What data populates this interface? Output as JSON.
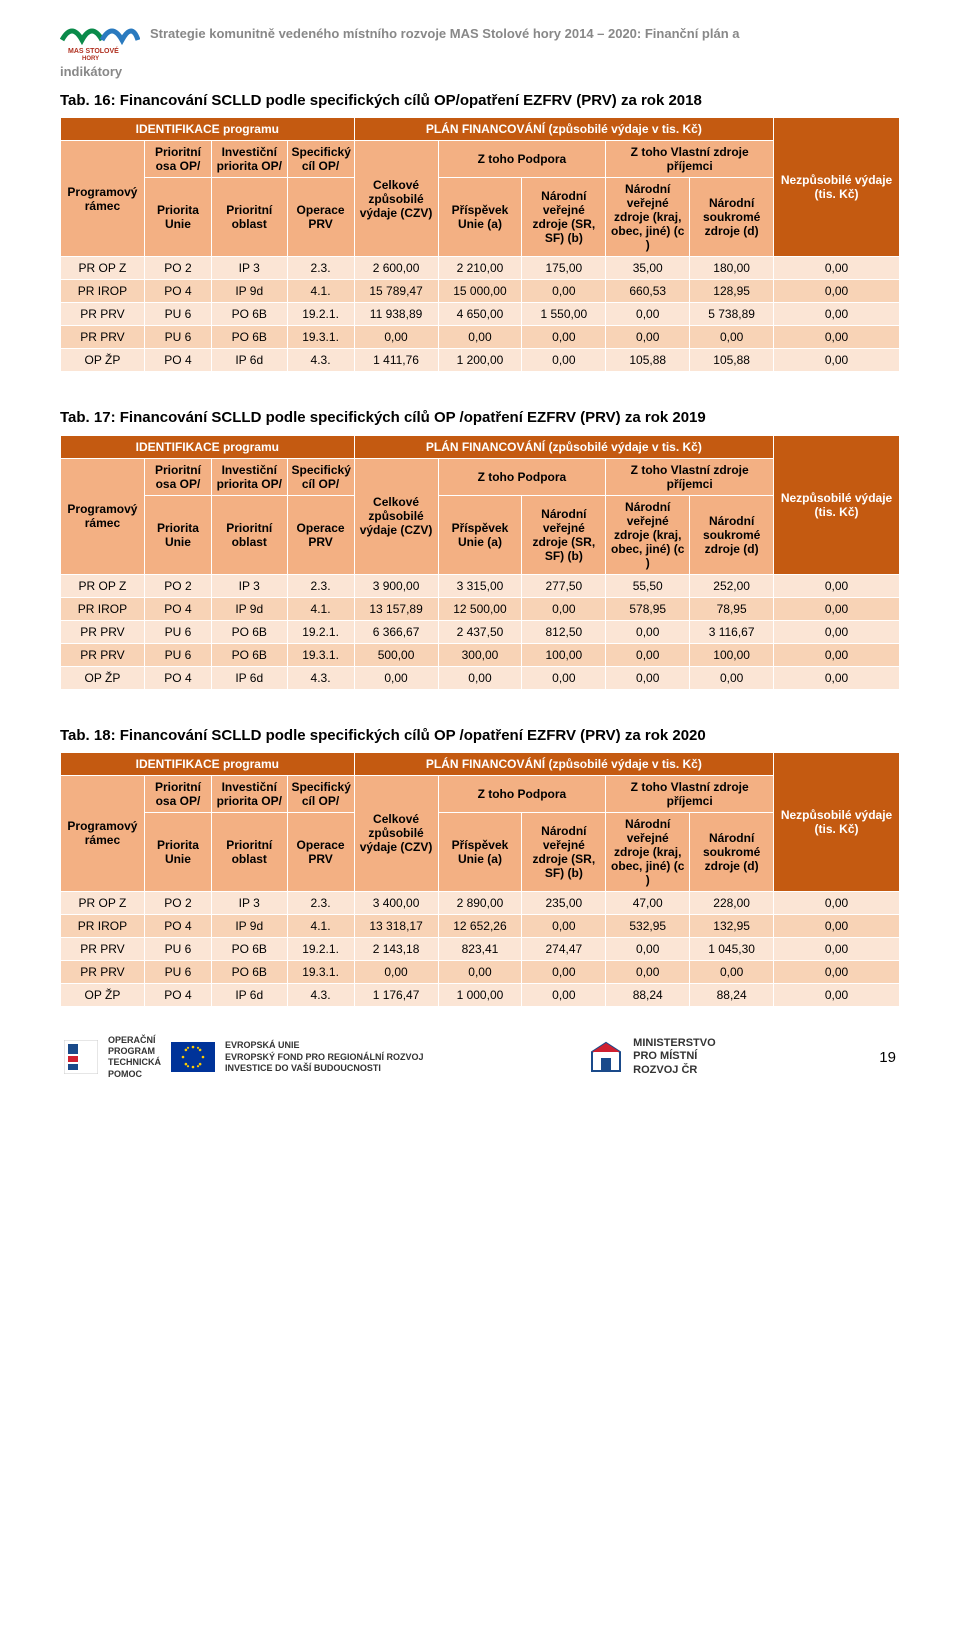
{
  "header": {
    "line": "Strategie komunitně vedeného místního rozvoje MAS Stolové hory 2014 – 2020: Finanční plán a",
    "indik": "indikátory"
  },
  "colors": {
    "header_dark": "#c45a11",
    "header_light": "#f3b083",
    "row_odd": "#fbe5d5",
    "row_even": "#f8d3b6",
    "header_text": "#888888"
  },
  "columns": {
    "ident_title": "IDENTIFIKACE programu",
    "plan_title": "PLÁN FINANCOVÁNÍ (způsobilé výdaje v tis. Kč)",
    "prog_ramec": "Programový rámec",
    "osa_top": "Prioritní osa OP/",
    "osa_bot": "Priorita Unie",
    "inv_top": "Investiční priorita OP/",
    "inv_bot": "Prioritní oblast",
    "spec_top": "Specifický cíl OP/",
    "spec_bot": "Operace PRV",
    "czv": "Celkové způsobilé výdaje (CZV)",
    "z_podpora": "Z toho Podpora",
    "prispevek": "Příspěvek Unie (a)",
    "nar_ver": "Národní veřejné zdroje (SR, SF) (b)",
    "z_vlastni": "Z toho Vlastní zdroje příjemci",
    "nar_ver_kraj": "Národní veřejné zdroje (kraj, obec, jiné) (c )",
    "nar_soukr": "Národní soukromé zdroje (d)",
    "nezp": "Nezpůsobilé výdaje (tis. Kč)"
  },
  "tables": [
    {
      "caption": "Tab. 16: Financování SCLLD podle specifických cílů OP/opatření EZFRV (PRV) za rok 2018",
      "rows": [
        [
          "PR OP Z",
          "PO 2",
          "IP 3",
          "2.3.",
          "2 600,00",
          "2 210,00",
          "175,00",
          "35,00",
          "180,00",
          "0,00"
        ],
        [
          "PR IROP",
          "PO 4",
          "IP 9d",
          "4.1.",
          "15 789,47",
          "15 000,00",
          "0,00",
          "660,53",
          "128,95",
          "0,00"
        ],
        [
          "PR PRV",
          "PU 6",
          "PO 6B",
          "19.2.1.",
          "11 938,89",
          "4 650,00",
          "1 550,00",
          "0,00",
          "5 738,89",
          "0,00"
        ],
        [
          "PR PRV",
          "PU 6",
          "PO 6B",
          "19.3.1.",
          "0,00",
          "0,00",
          "0,00",
          "0,00",
          "0,00",
          "0,00"
        ],
        [
          "OP ŽP",
          "PO 4",
          "IP 6d",
          "4.3.",
          "1 411,76",
          "1 200,00",
          "0,00",
          "105,88",
          "105,88",
          "0,00"
        ]
      ]
    },
    {
      "caption": "Tab. 17: Financování SCLLD podle specifických cílů OP /opatření EZFRV (PRV) za rok 2019",
      "rows": [
        [
          "PR OP Z",
          "PO 2",
          "IP 3",
          "2.3.",
          "3 900,00",
          "3 315,00",
          "277,50",
          "55,50",
          "252,00",
          "0,00"
        ],
        [
          "PR IROP",
          "PO 4",
          "IP 9d",
          "4.1.",
          "13 157,89",
          "12 500,00",
          "0,00",
          "578,95",
          "78,95",
          "0,00"
        ],
        [
          "PR PRV",
          "PU 6",
          "PO 6B",
          "19.2.1.",
          "6 366,67",
          "2 437,50",
          "812,50",
          "0,00",
          "3 116,67",
          "0,00"
        ],
        [
          "PR PRV",
          "PU 6",
          "PO 6B",
          "19.3.1.",
          "500,00",
          "300,00",
          "100,00",
          "0,00",
          "100,00",
          "0,00"
        ],
        [
          "OP ŽP",
          "PO 4",
          "IP 6d",
          "4.3.",
          "0,00",
          "0,00",
          "0,00",
          "0,00",
          "0,00",
          "0,00"
        ]
      ]
    },
    {
      "caption": "Tab. 18: Financování SCLLD podle specifických cílů OP /opatření EZFRV (PRV) za rok 2020",
      "rows": [
        [
          "PR OP Z",
          "PO 2",
          "IP 3",
          "2.3.",
          "3 400,00",
          "2 890,00",
          "235,00",
          "47,00",
          "228,00",
          "0,00"
        ],
        [
          "PR IROP",
          "PO 4",
          "IP 9d",
          "4.1.",
          "13 318,17",
          "12 652,26",
          "0,00",
          "532,95",
          "132,95",
          "0,00"
        ],
        [
          "PR PRV",
          "PU 6",
          "PO 6B",
          "19.2.1.",
          "2 143,18",
          "823,41",
          "274,47",
          "0,00",
          "1 045,30",
          "0,00"
        ],
        [
          "PR PRV",
          "PU 6",
          "PO 6B",
          "19.3.1.",
          "0,00",
          "0,00",
          "0,00",
          "0,00",
          "0,00",
          "0,00"
        ],
        [
          "OP ŽP",
          "PO 4",
          "IP 6d",
          "4.3.",
          "1 176,47",
          "1 000,00",
          "0,00",
          "88,24",
          "88,24",
          "0,00"
        ]
      ]
    }
  ],
  "footer": {
    "opt1": "OPERAČNÍ",
    "opt2": "PROGRAM",
    "opt3": "TECHNICKÁ",
    "opt4": "POMOC",
    "eu1": "EVROPSKÁ UNIE",
    "eu2": "EVROPSKÝ FOND PRO REGIONÁLNÍ ROZVOJ",
    "eu3": "INVESTICE DO VAŠÍ BUDOUCNOSTI",
    "mmr1": "MINISTERSTVO",
    "mmr2": "PRO MÍSTNÍ",
    "mmr3": "ROZVOJ ČR",
    "page": "19"
  }
}
